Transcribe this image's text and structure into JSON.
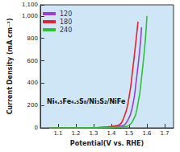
{
  "chart_data": {
    "type": "line",
    "x_label": "Potential(V vs. RHE)",
    "y_label": "Current Density (mA cm⁻²)",
    "annotation": "Ni₄.₅Fe₄.₅S₈/Ni₃S₂/NiFe",
    "xlim": [
      1.0,
      1.75
    ],
    "xticks": [
      1.1,
      1.2,
      1.3,
      1.4,
      1.5,
      1.6,
      1.7
    ],
    "ylim": [
      0,
      1100
    ],
    "yticks": [
      0,
      200,
      400,
      600,
      800,
      1000
    ],
    "legend": "upper left",
    "grid": false,
    "series": [
      {
        "name": "120",
        "color": "#9b3fd0",
        "x": [
          1.05,
          1.3,
          1.45,
          1.49,
          1.52,
          1.54,
          1.56,
          1.57
        ],
        "values": [
          0,
          2,
          15,
          60,
          200,
          420,
          700,
          900
        ]
      },
      {
        "name": "180",
        "color": "#e8202a",
        "x": [
          1.05,
          1.3,
          1.43,
          1.47,
          1.5,
          1.52,
          1.54,
          1.55
        ],
        "values": [
          0,
          2,
          20,
          90,
          280,
          520,
          800,
          950
        ]
      },
      {
        "name": "240",
        "color": "#2fbf3a",
        "x": [
          1.05,
          1.3,
          1.47,
          1.52,
          1.55,
          1.57,
          1.59,
          1.6
        ],
        "values": [
          0,
          1,
          10,
          60,
          220,
          450,
          760,
          1000
        ]
      }
    ]
  }
}
